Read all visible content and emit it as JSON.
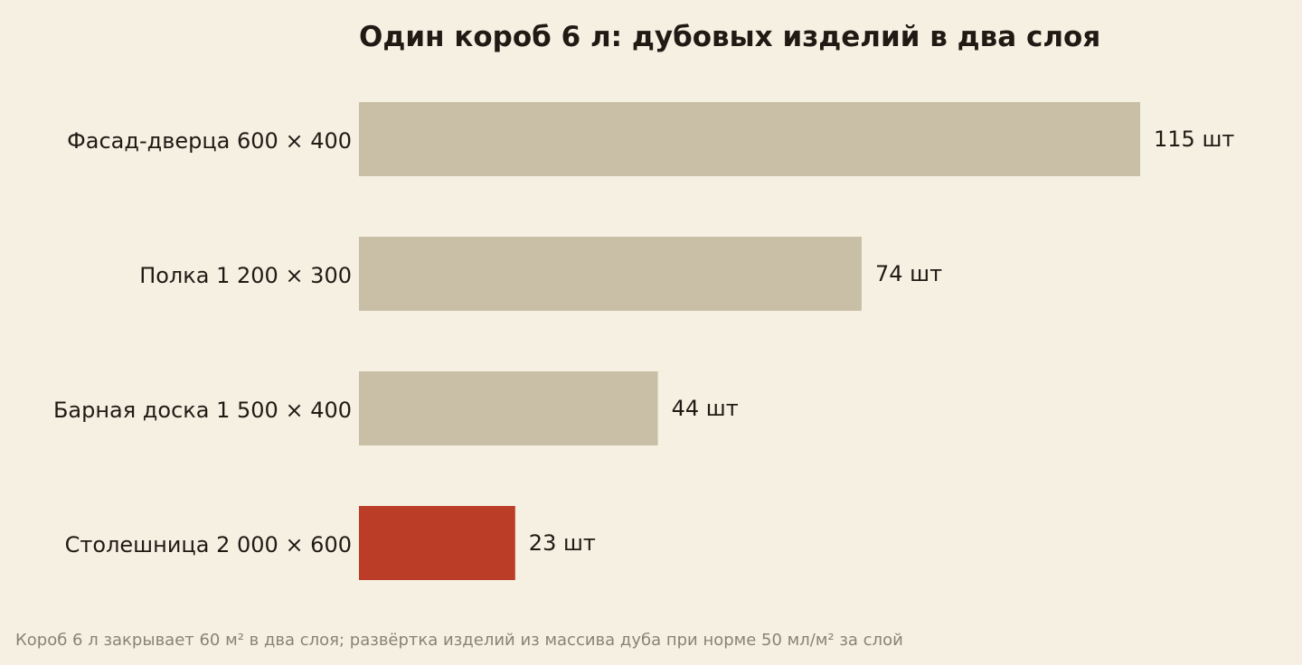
{
  "chart_data": {
    "type": "bar",
    "orientation": "horizontal",
    "title": "Один короб 6 л: дубовых изделий в два слоя",
    "categories": [
      "Фасад-дверца 600 × 400",
      "Полка 1 200 × 300",
      "Барная доска 1 500 × 400",
      "Столешница 2 000 × 600"
    ],
    "values": [
      115,
      74,
      44,
      23
    ],
    "value_labels": [
      "115 шт",
      "74 шт",
      "44 шт",
      "23 шт"
    ],
    "highlight_index": 3,
    "xlim": [
      0,
      115
    ],
    "grid": false,
    "legend": "none",
    "xlabel": "",
    "ylabel": ""
  },
  "footnote": "Короб 6 л закрывает 60 м² в два слоя; развёртка изделий из массива дуба при норме 50 мл/м² за слой",
  "colors": {
    "background": "#f6f0e3",
    "bar": "#c9bfa6",
    "highlight": "#bb3d27",
    "text": "#1f1b14",
    "footnote": "#8a8276"
  }
}
